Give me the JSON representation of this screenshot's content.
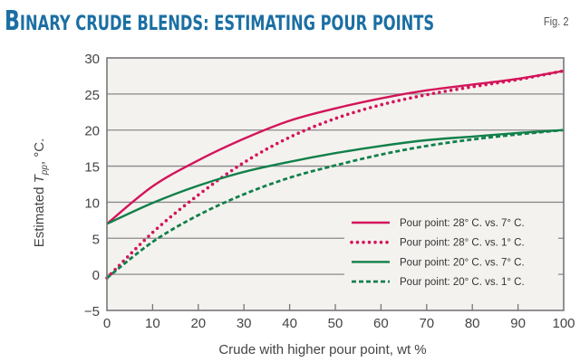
{
  "header": {
    "title_first_letter": "B",
    "title_rest": "inary crude blends: estimating pour points",
    "figure_label": "Fig. 2"
  },
  "chart_data": {
    "type": "line",
    "title": "Binary crude blends: estimating pour points",
    "xlabel": "Crude with higher pour point, wt %",
    "ylabel": "Estimated T_pp, °C.",
    "ylabel_main": "Estimated ",
    "ylabel_var": "T",
    "ylabel_sub": "pp",
    "ylabel_unit": ", °C.",
    "xlim": [
      0,
      100
    ],
    "ylim": [
      -5,
      30
    ],
    "xticks": [
      "0",
      "10",
      "20",
      "30",
      "40",
      "50",
      "60",
      "70",
      "80",
      "90",
      "100"
    ],
    "yticks": [
      "−5",
      "0",
      "5",
      "10",
      "15",
      "20",
      "25",
      "30"
    ],
    "grid": "horizontal",
    "legend_position": "lower right",
    "x": [
      0,
      10,
      20,
      30,
      40,
      50,
      60,
      70,
      80,
      90,
      100
    ],
    "series": [
      {
        "name": "Pour point: 28° C. vs. 7° C.",
        "color": "#d4145a",
        "style": "solid",
        "values": [
          7.0,
          12.2,
          15.8,
          18.8,
          21.3,
          23.0,
          24.4,
          25.5,
          26.3,
          27.1,
          28.2
        ]
      },
      {
        "name": "Pour point: 28° C. vs. 1° C.",
        "color": "#d4145a",
        "style": "dotted",
        "values": [
          -0.5,
          5.8,
          11.0,
          15.5,
          19.0,
          21.6,
          23.5,
          24.9,
          26.0,
          27.0,
          28.2
        ]
      },
      {
        "name": "Pour point: 20° C. vs. 7° C.",
        "color": "#11804a",
        "style": "solid",
        "values": [
          7.0,
          9.9,
          12.3,
          14.2,
          15.6,
          16.8,
          17.8,
          18.6,
          19.1,
          19.6,
          20.0
        ]
      },
      {
        "name": "Pour point: 20° C. vs. 1° C.",
        "color": "#11804a",
        "style": "dashed",
        "values": [
          -0.5,
          4.5,
          8.2,
          11.1,
          13.4,
          15.1,
          16.6,
          17.8,
          18.7,
          19.4,
          20.0
        ]
      }
    ]
  }
}
